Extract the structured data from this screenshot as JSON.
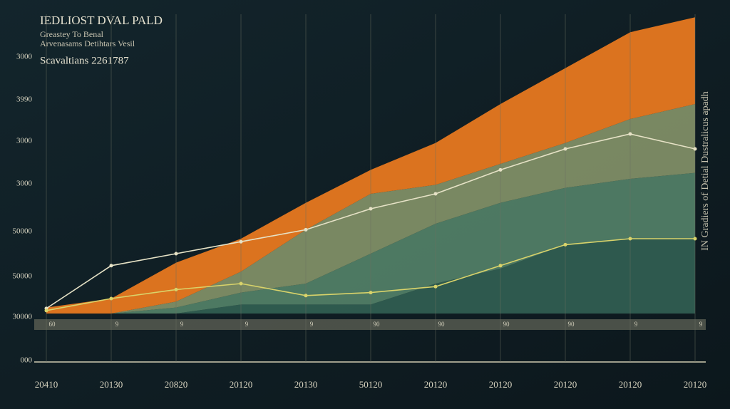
{
  "chart_data": {
    "type": "stacked-area",
    "title": "IEDLIOST DVAL PALD",
    "subtitle": [
      "Greastey To Benal",
      "Arvenasams Detihtars Vesil"
    ],
    "annotation": "Scavaltians 2261787",
    "side_label": "IN Gradiers of Detial Dustralicus apadh",
    "y_axis_labels": [
      "3000",
      "3990",
      "3000",
      "3000",
      "50000",
      "50000",
      "30000",
      "000"
    ],
    "categories": [
      "20410",
      "20130",
      "20820",
      "20120",
      "20130",
      "50120",
      "20120",
      "20120",
      "20120",
      "20120",
      "20120"
    ],
    "strip_labels": [
      "60",
      "9",
      "9",
      "9",
      "9",
      "90",
      "90",
      "90",
      "90",
      "9",
      "9"
    ],
    "ylim": [
      0,
      100
    ],
    "series": [
      {
        "color": "#2f5c50",
        "values": [
          0,
          0,
          0,
          3,
          3,
          3,
          10,
          15,
          23,
          25,
          25
        ]
      },
      {
        "color": "#4f7c64",
        "values": [
          0,
          0,
          2,
          4,
          7,
          17,
          20,
          22,
          19,
          20,
          22
        ]
      },
      {
        "color": "#7d8b64",
        "values": [
          0,
          0,
          2,
          7,
          18,
          20,
          13,
          13,
          15,
          20,
          23
        ]
      },
      {
        "color": "#e2761f",
        "values": [
          2,
          5,
          13,
          11,
          9,
          8,
          14,
          20,
          25,
          29,
          29
        ]
      }
    ],
    "lines": [
      {
        "color": "#e6e2c6",
        "values": [
          1.7,
          16,
          20,
          24,
          28,
          35,
          40,
          48,
          55,
          60,
          55
        ]
      },
      {
        "color": "#d9d36a",
        "values": [
          1,
          5,
          8,
          10,
          6,
          7,
          9,
          16,
          23,
          25,
          25
        ]
      }
    ]
  }
}
